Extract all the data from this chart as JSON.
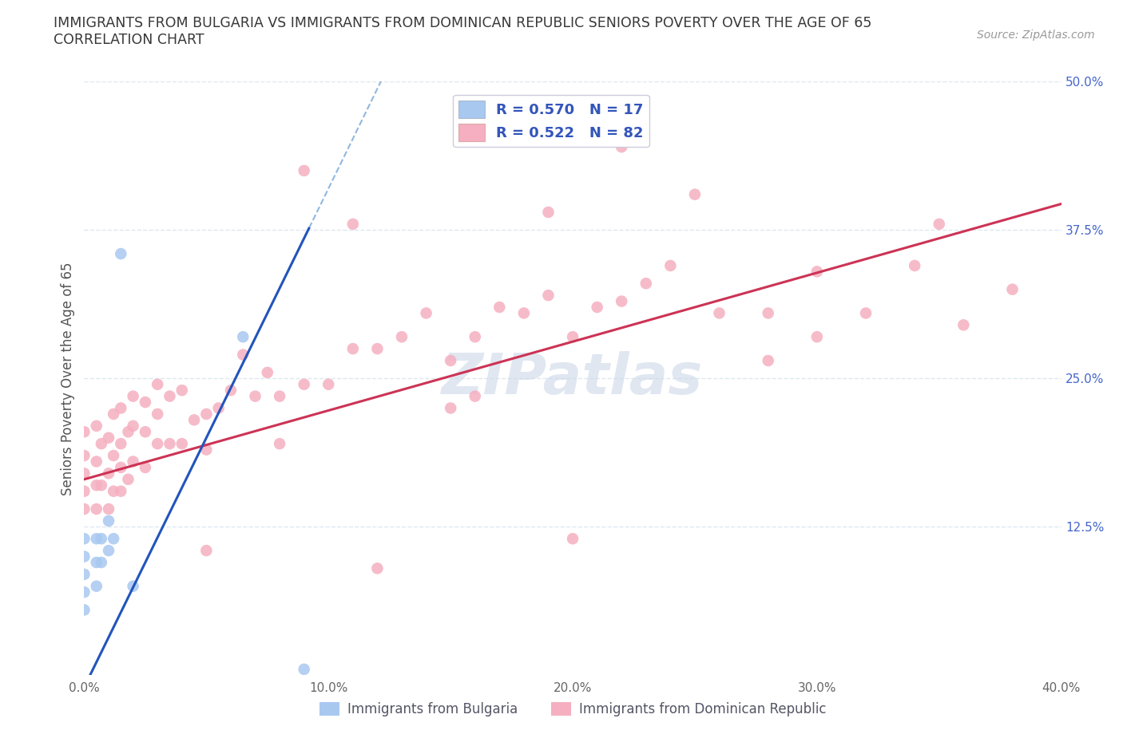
{
  "title_line1": "IMMIGRANTS FROM BULGARIA VS IMMIGRANTS FROM DOMINICAN REPUBLIC SENIORS POVERTY OVER THE AGE OF 65",
  "title_line2": "CORRELATION CHART",
  "source_text": "Source: ZipAtlas.com",
  "ylabel": "Seniors Poverty Over the Age of 65",
  "xlim": [
    0.0,
    0.4
  ],
  "ylim": [
    0.0,
    0.5
  ],
  "legend_entry1": "R = 0.570   N = 17",
  "legend_entry2": "R = 0.522   N = 82",
  "legend_label1": "Immigrants from Bulgaria",
  "legend_label2": "Immigrants from Dominican Republic",
  "blue_scatter_color": "#a8c8f0",
  "pink_scatter_color": "#f5afc0",
  "blue_line_color": "#2255bb",
  "pink_line_color": "#cc3355",
  "dashed_line_color": "#90b8e0",
  "watermark_color": "#ccd8e8",
  "grid_color": "#dce8f0",
  "title_color": "#383838",
  "legend_text_color": "#3355bb",
  "axis_tick_color": "#4466cc",
  "x_tick_color": "#666666",
  "bg_color": "#ffffff",
  "ytick_vals": [
    0.125,
    0.25,
    0.375,
    0.5
  ],
  "ytick_labels": [
    "12.5%",
    "25.0%",
    "37.5%",
    "50.0%"
  ],
  "xtick_vals": [
    0.0,
    0.1,
    0.2,
    0.3,
    0.4
  ],
  "xtick_labels": [
    "0.0%",
    "10.0%",
    "20.0%",
    "30.0%",
    "40.0%"
  ],
  "bg_x": [
    0.0,
    0.0,
    0.0,
    0.0,
    0.0,
    0.005,
    0.005,
    0.005,
    0.007,
    0.007,
    0.01,
    0.01,
    0.012,
    0.015,
    0.02,
    0.065,
    0.09
  ],
  "bg_y": [
    0.055,
    0.07,
    0.085,
    0.1,
    0.115,
    0.075,
    0.095,
    0.115,
    0.095,
    0.115,
    0.105,
    0.13,
    0.115,
    0.355,
    0.075,
    0.285,
    0.005
  ],
  "dr_x": [
    0.0,
    0.0,
    0.0,
    0.0,
    0.0,
    0.005,
    0.005,
    0.005,
    0.005,
    0.007,
    0.007,
    0.01,
    0.01,
    0.01,
    0.012,
    0.012,
    0.012,
    0.015,
    0.015,
    0.015,
    0.015,
    0.018,
    0.018,
    0.02,
    0.02,
    0.02,
    0.025,
    0.025,
    0.025,
    0.03,
    0.03,
    0.03,
    0.035,
    0.035,
    0.04,
    0.04,
    0.045,
    0.05,
    0.05,
    0.055,
    0.06,
    0.065,
    0.07,
    0.075,
    0.08,
    0.09,
    0.1,
    0.11,
    0.12,
    0.13,
    0.14,
    0.15,
    0.16,
    0.17,
    0.18,
    0.19,
    0.2,
    0.21,
    0.22,
    0.23,
    0.24,
    0.26,
    0.28,
    0.3,
    0.32,
    0.34,
    0.36,
    0.38,
    0.05,
    0.08,
    0.12,
    0.15,
    0.2,
    0.09,
    0.19,
    0.25,
    0.3,
    0.35,
    0.22,
    0.28,
    0.11,
    0.16
  ],
  "dr_y": [
    0.14,
    0.155,
    0.17,
    0.185,
    0.205,
    0.14,
    0.16,
    0.18,
    0.21,
    0.16,
    0.195,
    0.14,
    0.17,
    0.2,
    0.155,
    0.185,
    0.22,
    0.155,
    0.175,
    0.195,
    0.225,
    0.165,
    0.205,
    0.18,
    0.21,
    0.235,
    0.175,
    0.205,
    0.23,
    0.195,
    0.22,
    0.245,
    0.195,
    0.235,
    0.195,
    0.24,
    0.215,
    0.19,
    0.22,
    0.225,
    0.24,
    0.27,
    0.235,
    0.255,
    0.235,
    0.245,
    0.245,
    0.275,
    0.275,
    0.285,
    0.305,
    0.265,
    0.285,
    0.31,
    0.305,
    0.32,
    0.285,
    0.31,
    0.315,
    0.33,
    0.345,
    0.305,
    0.305,
    0.34,
    0.305,
    0.345,
    0.295,
    0.325,
    0.105,
    0.195,
    0.09,
    0.225,
    0.115,
    0.425,
    0.39,
    0.405,
    0.285,
    0.38,
    0.445,
    0.265,
    0.38,
    0.235
  ],
  "bg_line_slope": 4.2,
  "bg_line_intercept": -0.01,
  "bg_line_x_solid_end": 0.092,
  "dr_line_slope": 0.58,
  "dr_line_intercept": 0.165
}
